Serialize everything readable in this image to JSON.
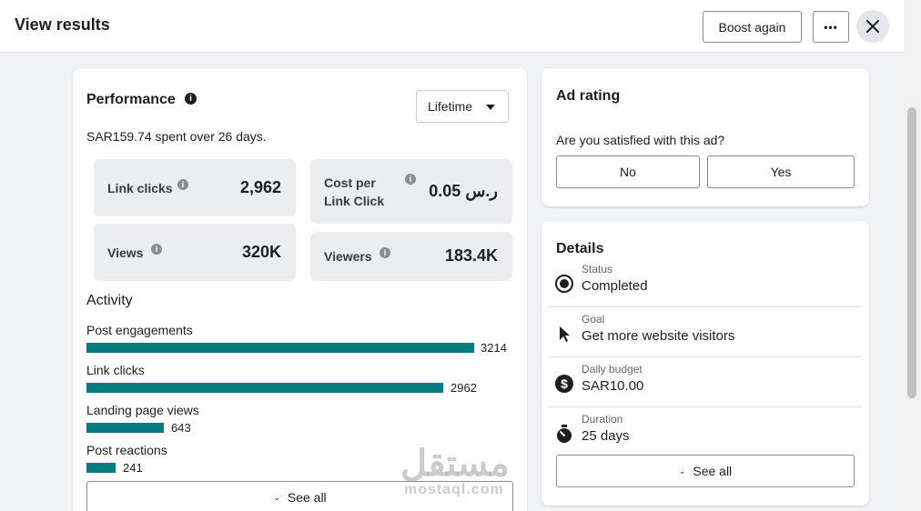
{
  "header": {
    "title": "View results",
    "boost_label": "Boost again",
    "more_label": "•••"
  },
  "performance": {
    "title": "Performance",
    "info": "i",
    "period": "Lifetime",
    "spent": "SAR159.74 spent over 26 days.",
    "metrics": {
      "link_clicks": {
        "label": "Link clicks",
        "value": "2,962"
      },
      "cost_per_click": {
        "label_line1": "Cost per",
        "label_line2": "Link Click",
        "value": "0.05 ر.س"
      },
      "views": {
        "label": "Views",
        "value": "320K"
      },
      "viewers": {
        "label": "Viewers",
        "value": "183.4K"
      }
    },
    "activity": {
      "title": "Activity",
      "items": [
        {
          "label": "Post engagements",
          "value": "3214"
        },
        {
          "label": "Link clicks",
          "value": "2962"
        },
        {
          "label": "Landing page views",
          "value": "643"
        },
        {
          "label": "Post reactions",
          "value": "241"
        }
      ],
      "see_all": "See all"
    }
  },
  "rating": {
    "title": "Ad rating",
    "question": "Are you satisfied with this ad?",
    "no": "No",
    "yes": "Yes"
  },
  "details": {
    "title": "Details",
    "rows": [
      {
        "label": "Status",
        "value": "Completed",
        "icon": "radio-selected-icon"
      },
      {
        "label": "Goal",
        "value": "Get more website visitors",
        "icon": "cursor-icon"
      },
      {
        "label": "Daily budget",
        "value": "SAR10.00",
        "icon": "dollar-icon"
      },
      {
        "label": "Duration",
        "value": "25 days",
        "icon": "stopwatch-icon"
      }
    ],
    "see_all": "See all"
  },
  "watermark": {
    "arabic": "مستقل",
    "latin": "mostaql.com"
  },
  "colors": {
    "accent_bar": "#077b7f",
    "metric_bg": "#ebedf0"
  }
}
